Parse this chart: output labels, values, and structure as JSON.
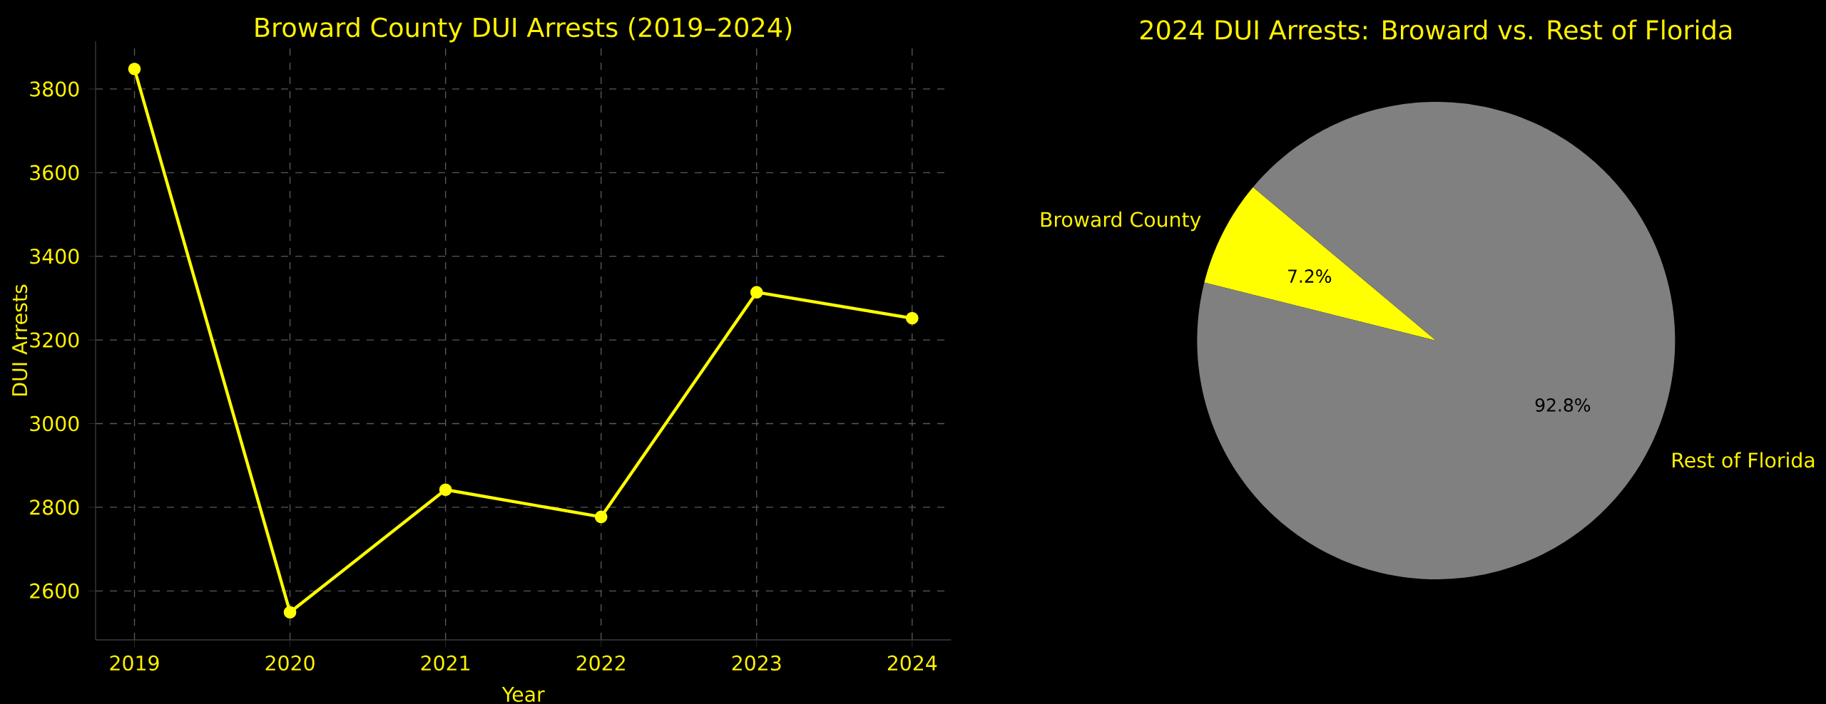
{
  "chart_data": [
    {
      "type": "line",
      "title": "Broward County DUI Arrests (2019–2024)",
      "xlabel": "Year",
      "ylabel": "DUI Arrests",
      "x": [
        2019,
        2020,
        2021,
        2022,
        2023,
        2024
      ],
      "series": [
        {
          "color": "#ffff00",
          "values": [
            3848,
            2549,
            2842,
            2777,
            3314,
            3252
          ]
        }
      ],
      "xlim": [
        2018.75,
        2024.25
      ],
      "ylim": [
        2483,
        3914
      ],
      "xticks": [
        2019,
        2020,
        2021,
        2022,
        2023,
        2024
      ],
      "yticks": [
        2600,
        2800,
        3000,
        3200,
        3400,
        3600,
        3800
      ],
      "grid": true,
      "marker": "circle",
      "line_style": "solid"
    },
    {
      "type": "pie",
      "title": "2024 DUI Arrests: Broward vs. Rest of Florida",
      "categories": [
        "Broward County",
        "Rest of Florida"
      ],
      "values": [
        7.2,
        92.8
      ],
      "colors": [
        "#ffff00",
        "#808080"
      ],
      "value_labels": [
        "7.2%",
        "92.8%"
      ]
    }
  ]
}
